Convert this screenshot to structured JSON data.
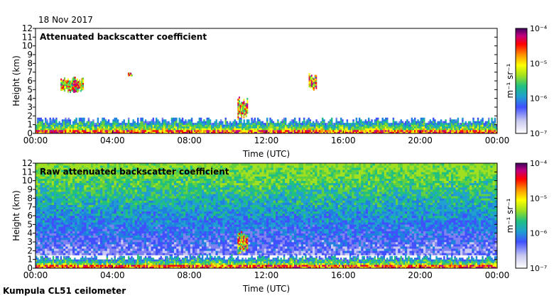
{
  "date": "18 Nov 2017",
  "footer": "Kumpula CL51 ceilometer",
  "chart_data": [
    {
      "type": "heatmap",
      "title": "Attenuated backscatter coefficient",
      "xlabel": "Time (UTC)",
      "ylabel": "Height (km)",
      "xlim": [
        0,
        24
      ],
      "ylim": [
        0,
        12
      ],
      "x_ticks": [
        "00:00",
        "04:00",
        "08:00",
        "12:00",
        "16:00",
        "20:00",
        "00:00"
      ],
      "y_ticks": [
        0,
        1,
        2,
        3,
        4,
        5,
        6,
        7,
        8,
        9,
        10,
        11,
        12
      ],
      "colorbar": {
        "min": "1e-7",
        "max": "1e-4",
        "label": "m⁻¹ sr⁻¹",
        "ticks": [
          "10⁻⁷",
          "10⁻⁶",
          "10⁻⁵",
          "10⁻⁴"
        ]
      },
      "features": [
        {
          "kind": "boundary_layer",
          "t0": 0,
          "t1": 24,
          "top_km": 1.8
        },
        {
          "kind": "cloud",
          "t0": 1.3,
          "t1": 2.5,
          "h0": 4.6,
          "h1": 6.4
        },
        {
          "kind": "cloud",
          "t0": 4.8,
          "t1": 5.0,
          "h0": 6.5,
          "h1": 6.8
        },
        {
          "kind": "cloud",
          "t0": 10.5,
          "t1": 11.0,
          "h0": 1.5,
          "h1": 4.2
        },
        {
          "kind": "cloud",
          "t0": 14.2,
          "t1": 14.6,
          "h0": 4.9,
          "h1": 6.8
        }
      ]
    },
    {
      "type": "heatmap",
      "title": "Raw attenuated backscatter coefficient",
      "xlabel": "Time (UTC)",
      "ylabel": "Height (km)",
      "xlim": [
        0,
        24
      ],
      "ylim": [
        0,
        12
      ],
      "x_ticks": [
        "00:00",
        "04:00",
        "08:00",
        "12:00",
        "16:00",
        "20:00",
        "00:00"
      ],
      "y_ticks": [
        0,
        1,
        2,
        3,
        4,
        5,
        6,
        7,
        8,
        9,
        10,
        11,
        12
      ],
      "colorbar": {
        "min": "1e-7",
        "max": "1e-4",
        "label": "m⁻¹ sr⁻¹",
        "ticks": [
          "10⁻⁷",
          "10⁻⁶",
          "10⁻⁵",
          "10⁻⁴"
        ]
      },
      "features": [
        {
          "kind": "noise_background",
          "t0": 0,
          "t1": 24,
          "h0": 1.5,
          "h1": 12
        },
        {
          "kind": "boundary_layer",
          "t0": 0,
          "t1": 24,
          "top_km": 1.5
        },
        {
          "kind": "cloud",
          "t0": 10.5,
          "t1": 11.0,
          "h0": 1.5,
          "h1": 4.2
        }
      ]
    }
  ]
}
